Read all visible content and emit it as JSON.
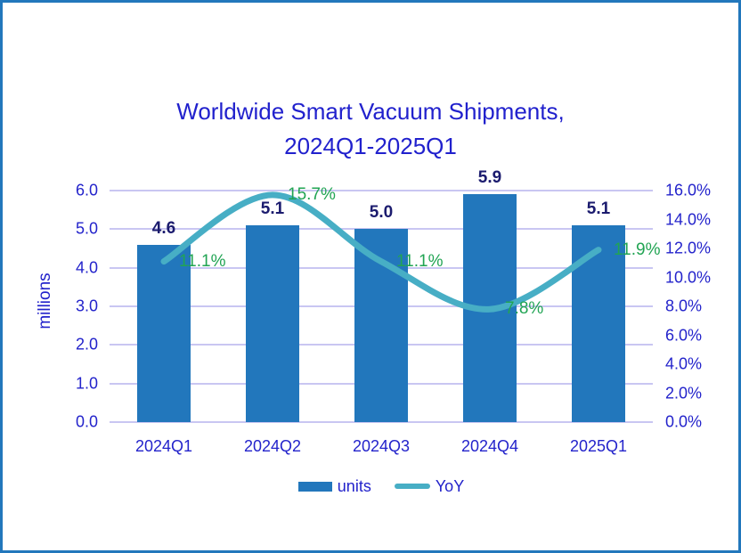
{
  "chart_data": {
    "type": "combo",
    "title": "Worldwide Smart Vacuum Shipments, 2024Q1-2025Q1",
    "title_lines": [
      "Worldwide Smart Vacuum Shipments,",
      "2024Q1-2025Q1"
    ],
    "categories": [
      "2024Q1",
      "2024Q2",
      "2024Q3",
      "2024Q4",
      "2025Q1"
    ],
    "series": [
      {
        "name": "units",
        "type": "bar",
        "axis": "left",
        "values": [
          4.6,
          5.1,
          5.0,
          5.9,
          5.1
        ],
        "labels": [
          "4.6",
          "5.1",
          "5.0",
          "5.9",
          "5.1"
        ]
      },
      {
        "name": "YoY",
        "type": "line",
        "axis": "right",
        "values": [
          11.1,
          15.7,
          11.1,
          7.8,
          11.9
        ],
        "labels": [
          "11.1%",
          "15.7%",
          "11.1%",
          "7.8%",
          "11.9%"
        ]
      }
    ],
    "left_axis": {
      "label": "millions",
      "min": 0,
      "max": 6,
      "step": 1,
      "ticks": [
        "6.0",
        "5.0",
        "4.0",
        "3.0",
        "2.0",
        "1.0",
        "0.0"
      ]
    },
    "right_axis": {
      "min": 0,
      "max": 16,
      "step": 2,
      "ticks": [
        "16.0%",
        "14.0%",
        "12.0%",
        "10.0%",
        "8.0%",
        "6.0%",
        "4.0%",
        "2.0%",
        "0.0%"
      ]
    },
    "legend": [
      "units",
      "YoY"
    ],
    "legend_position": "bottom",
    "grid": true,
    "colors": {
      "bar": "#2277bc",
      "line": "#47aec5",
      "title_text": "#2121cd",
      "axis_text": "#2323cb",
      "bar_label_text": "#1b1b6e",
      "yoy_label_text": "#21a453",
      "gridline": "#c9c6f2",
      "border": "#2277bc"
    }
  }
}
